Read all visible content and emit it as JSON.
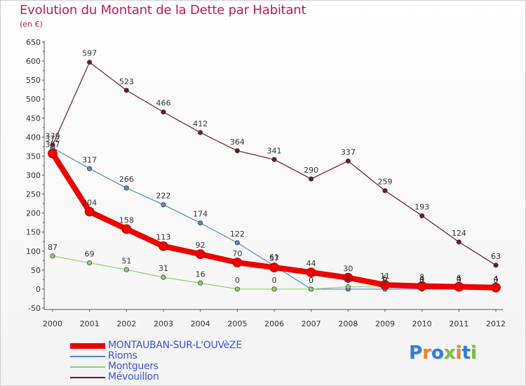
{
  "title": "Evolution du Montant de la Dette par Habitant",
  "subtitle": "(en €)",
  "logo": {
    "text": "Proxiti",
    "letter_colors": [
      "#2e7fd4",
      "#e8852a",
      "#2e7fd4",
      "#7ac142",
      "#e8852a",
      "#2e7fd4",
      "#7ac142"
    ]
  },
  "chart_data": {
    "type": "line",
    "title": "Evolution du Montant de la Dette par Habitant",
    "subtitle": "(en €)",
    "x": [
      "2000",
      "2001",
      "2002",
      "2003",
      "2004",
      "2005",
      "2006",
      "2007",
      "2008",
      "2009",
      "2010",
      "2011",
      "2012"
    ],
    "ylim": [
      -50,
      650
    ],
    "yticks": [
      -50,
      0,
      50,
      100,
      150,
      200,
      250,
      300,
      350,
      400,
      450,
      500,
      550,
      600,
      650
    ],
    "grid": false,
    "legend_position": "bottom-left",
    "series": [
      {
        "name": "Mévouillon",
        "color": "#6b1a1f",
        "width": 1.2,
        "values": [
          379,
          597,
          523,
          466,
          412,
          364,
          341,
          290,
          337,
          259,
          193,
          124,
          63
        ],
        "labels": [
          "379",
          "597",
          "523",
          "466",
          "412",
          "364",
          "341",
          "290",
          "337",
          "259",
          "193",
          "124",
          "63"
        ]
      },
      {
        "name": "Rioms",
        "color": "#4f8ac9",
        "width": 1.2,
        "values": [
          372,
          317,
          266,
          222,
          174,
          122,
          61,
          0,
          0,
          0,
          0,
          0,
          0
        ],
        "labels": [
          "372",
          "317",
          "266",
          "222",
          "174",
          "122",
          "61",
          "0",
          "0",
          "0",
          "0",
          "0",
          "0"
        ]
      },
      {
        "name": "Montguers",
        "color": "#8fd16a",
        "width": 1.2,
        "values": [
          87,
          69,
          51,
          31,
          16,
          0,
          0,
          0,
          6,
          6,
          4,
          4,
          4
        ],
        "labels": [
          "87",
          "69",
          "51",
          "31",
          "16",
          "0",
          "0",
          "0",
          "6",
          "6",
          "4",
          "4",
          "4"
        ]
      },
      {
        "name": "MONTAUBAN-SUR-L'OUVèZE",
        "color": "#ee0000",
        "width": 8,
        "values": [
          357,
          204,
          158,
          113,
          92,
          70,
          57,
          44,
          30,
          11,
          8,
          6,
          4
        ],
        "labels": [
          "357",
          "204",
          "158",
          "113",
          "92",
          "70",
          "57",
          "44",
          "30",
          "11",
          "8",
          "6",
          "4"
        ]
      }
    ],
    "legend": [
      "MONTAUBAN-SUR-L'OUVèZE",
      "Rioms",
      "Montguers",
      "Mévouillon"
    ]
  }
}
